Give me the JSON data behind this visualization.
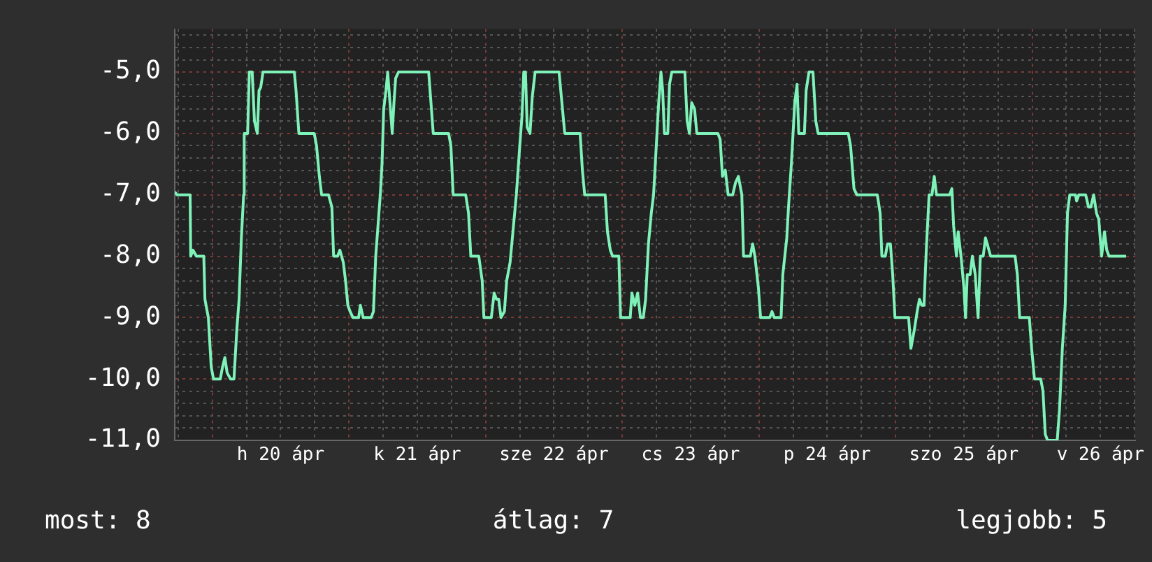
{
  "chart_data": {
    "type": "line",
    "x": [
      "--04-19T17:24",
      "--04-19T17:48",
      "--04-19T20:06",
      "--04-19T20:12",
      "--04-19T20:36",
      "--04-19T21:12",
      "--04-19T22:30",
      "--04-19T22:42",
      "--04-19T23:18",
      "--04-19T23:48",
      "--04-20T00:12",
      "--04-20T01:24",
      "--04-20T01:48",
      "--04-20T02:12",
      "--04-20T02:36",
      "--04-20T03:12",
      "--04-20T03:48",
      "--04-20T04:18",
      "--04-20T04:42",
      "--04-20T05:06",
      "--04-20T05:30",
      "--04-20T05:36",
      "--04-20T06:12",
      "--04-20T06:30",
      "--04-20T07:00",
      "--04-20T07:24",
      "--04-20T07:54",
      "--04-20T08:12",
      "--04-20T08:30",
      "--04-20T08:54",
      "--04-20T14:24",
      "--04-20T14:42",
      "--04-20T15:12",
      "--04-20T17:54",
      "--04-20T18:18",
      "--04-20T18:48",
      "--04-20T19:12",
      "--04-20T20:24",
      "--04-20T21:00",
      "--04-20T21:18",
      "--04-20T22:00",
      "--04-20T22:24",
      "--04-20T23:00",
      "--04-20T23:24",
      "--04-20T23:48",
      "--04-21T00:12",
      "--04-21T00:42",
      "--04-21T01:42",
      "--04-21T02:00",
      "--04-21T02:30",
      "--04-21T03:54",
      "--04-21T04:18",
      "--04-21T04:42",
      "--04-21T05:06",
      "--04-21T05:30",
      "--04-21T05:48",
      "--04-21T06:06",
      "--04-21T06:30",
      "--04-21T06:48",
      "--04-21T07:12",
      "--04-21T07:36",
      "--04-21T07:54",
      "--04-21T08:12",
      "--04-21T08:42",
      "--04-21T14:00",
      "--04-21T14:24",
      "--04-21T14:48",
      "--04-21T17:30",
      "--04-21T17:54",
      "--04-21T18:18",
      "--04-21T20:30",
      "--04-21T21:00",
      "--04-21T21:24",
      "--04-21T22:48",
      "--04-21T23:24",
      "--04-21T23:42",
      "--04-22T01:00",
      "--04-22T01:30",
      "--04-22T01:54",
      "--04-22T02:18",
      "--04-22T02:42",
      "--04-22T03:18",
      "--04-22T03:42",
      "--04-22T04:18",
      "--04-22T04:54",
      "--04-22T05:24",
      "--04-22T06:00",
      "--04-22T06:24",
      "--04-22T06:42",
      "--04-22T07:00",
      "--04-22T07:18",
      "--04-22T07:48",
      "--04-22T08:12",
      "--04-22T08:42",
      "--04-22T12:54",
      "--04-22T13:18",
      "--04-22T13:54",
      "--04-22T16:36",
      "--04-22T17:00",
      "--04-22T17:24",
      "--04-22T21:00",
      "--04-22T21:24",
      "--04-22T21:54",
      "--04-22T22:18",
      "--04-22T23:24",
      "--04-22T23:42",
      "--04-23T01:24",
      "--04-23T01:42",
      "--04-23T02:12",
      "--04-23T02:42",
      "--04-23T03:12",
      "--04-23T03:42",
      "--04-23T04:06",
      "--04-23T04:36",
      "--04-23T05:06",
      "--04-23T05:30",
      "--04-23T05:48",
      "--04-23T06:06",
      "--04-23T06:24",
      "--04-23T06:48",
      "--04-23T07:06",
      "--04-23T07:24",
      "--04-23T08:00",
      "--04-23T08:18",
      "--04-23T08:42",
      "--04-23T11:00",
      "--04-23T11:24",
      "--04-23T11:48",
      "--04-23T12:12",
      "--04-23T12:42",
      "--04-23T13:06",
      "--04-23T16:48",
      "--04-23T17:12",
      "--04-23T17:36",
      "--04-23T18:06",
      "--04-23T18:36",
      "--04-23T19:24",
      "--04-23T19:54",
      "--04-23T20:24",
      "--04-23T21:00",
      "--04-23T21:18",
      "--04-23T22:30",
      "--04-23T22:54",
      "--04-23T23:18",
      "--04-23T23:54",
      "--04-24T00:18",
      "--04-24T01:54",
      "--04-24T02:18",
      "--04-24T02:42",
      "--04-24T03:54",
      "--04-24T04:12",
      "--04-24T04:54",
      "--04-24T05:12",
      "--04-24T05:42",
      "--04-24T06:18",
      "--04-24T06:42",
      "--04-24T07:00",
      "--04-24T08:00",
      "--04-24T08:18",
      "--04-24T08:48",
      "--04-24T09:30",
      "--04-24T10:00",
      "--04-24T10:24",
      "--04-24T15:42",
      "--04-24T16:06",
      "--04-24T16:42",
      "--04-24T17:12",
      "--04-24T20:48",
      "--04-24T21:18",
      "--04-24T21:36",
      "--04-24T22:12",
      "--04-24T22:36",
      "--04-24T23:06",
      "--04-24T23:30",
      "--04-24T23:54",
      "--04-25T02:18",
      "--04-25T02:42",
      "--04-25T03:18",
      "--04-25T03:48",
      "--04-25T04:12",
      "--04-25T04:36",
      "--04-25T05:00",
      "--04-25T05:24",
      "--04-25T05:54",
      "--04-25T06:24",
      "--04-25T06:48",
      "--04-25T07:12",
      "--04-25T09:30",
      "--04-25T09:54",
      "--04-25T10:12",
      "--04-25T10:42",
      "--04-25T11:00",
      "--04-25T11:30",
      "--04-25T12:00",
      "--04-25T12:18",
      "--04-25T12:36",
      "--04-25T13:06",
      "--04-25T13:30",
      "--04-25T14:00",
      "--04-25T14:30",
      "--04-25T14:54",
      "--04-25T15:24",
      "--04-25T15:48",
      "--04-25T16:24",
      "--04-25T16:42",
      "--04-25T21:00",
      "--04-25T21:24",
      "--04-25T21:48",
      "--04-25T23:30",
      "--04-25T23:54",
      "--04-26T00:24",
      "--04-26T01:30",
      "--04-26T01:54",
      "--04-26T02:18",
      "--04-26T02:42",
      "--04-26T04:24",
      "--04-26T04:48",
      "--04-26T05:18",
      "--04-26T05:48",
      "--04-26T06:12",
      "--04-26T06:36",
      "--04-26T07:36",
      "--04-26T07:48",
      "--04-26T08:12",
      "--04-26T09:24",
      "--04-26T09:54",
      "--04-26T10:18",
      "--04-26T10:48",
      "--04-26T11:18",
      "--04-26T11:42",
      "--04-26T12:12",
      "--04-26T12:42",
      "--04-26T13:06",
      "--04-26T13:30",
      "--04-26T16:30"
    ],
    "series": [
      {
        "color": "#7ef2b8",
        "values": [
          -6.95,
          -7,
          -7,
          -8,
          -7.9,
          -8,
          -8,
          -8.7,
          -9,
          -9.8,
          -10,
          -10,
          -9.8,
          -9.65,
          -9.9,
          -10,
          -10,
          -9.2,
          -8.7,
          -7.7,
          -7,
          -6,
          -6,
          -5,
          -5,
          -5.8,
          -6,
          -5.3,
          -5.25,
          -5,
          -5,
          -5.3,
          -6,
          -6,
          -6.2,
          -6.7,
          -7,
          -7,
          -7.2,
          -8,
          -8,
          -7.9,
          -8.1,
          -8.4,
          -8.8,
          -8.9,
          -9,
          -9,
          -8.8,
          -9,
          -9,
          -8.9,
          -8,
          -7.5,
          -7,
          -6.5,
          -5.6,
          -5.3,
          -5,
          -5.5,
          -6,
          -5.5,
          -5.1,
          -5,
          -5,
          -5.5,
          -6,
          -6,
          -6.2,
          -7,
          -7,
          -7.3,
          -8,
          -8,
          -8.4,
          -9,
          -9,
          -8.6,
          -8.7,
          -8.7,
          -9,
          -8.9,
          -8.4,
          -8.1,
          -7.5,
          -7,
          -6.2,
          -5.7,
          -5,
          -5,
          -5.9,
          -6,
          -5.4,
          -5,
          -5,
          -5.4,
          -6,
          -6,
          -6.6,
          -7,
          -7,
          -7.6,
          -7.9,
          -8,
          -8,
          -9,
          -9,
          -8.6,
          -8.8,
          -8.6,
          -9,
          -9,
          -8.7,
          -7.8,
          -7.3,
          -7,
          -6.5,
          -6,
          -5.5,
          -5,
          -5.3,
          -6,
          -6,
          -5.2,
          -5,
          -5,
          -5.8,
          -6,
          -5.5,
          -5.6,
          -6,
          -6,
          -6.1,
          -6.7,
          -6.6,
          -7,
          -7,
          -6.8,
          -6.7,
          -7,
          -8,
          -8,
          -7.8,
          -8,
          -8.5,
          -9,
          -9,
          -8.9,
          -9,
          -9,
          -8.3,
          -7.7,
          -7.2,
          -6.5,
          -5.5,
          -5.2,
          -6,
          -6,
          -5.3,
          -5,
          -5,
          -5.8,
          -6,
          -6,
          -6.2,
          -6.9,
          -7,
          -7,
          -7.3,
          -8,
          -8,
          -7.8,
          -7.8,
          -8.3,
          -9,
          -9,
          -9.5,
          -9.2,
          -8.9,
          -8.7,
          -8.8,
          -8.8,
          -7.9,
          -7,
          -7,
          -6.7,
          -7,
          -7,
          -6.9,
          -7.5,
          -8,
          -7.6,
          -8,
          -8.5,
          -9,
          -8.3,
          -8.3,
          -8,
          -8.3,
          -9,
          -8,
          -8,
          -7.7,
          -7.9,
          -8,
          -8,
          -8.3,
          -9,
          -9,
          -9.5,
          -10,
          -10,
          -10.2,
          -10.9,
          -11,
          -11,
          -10.5,
          -9.5,
          -8.8,
          -7.3,
          -7,
          -7,
          -7.1,
          -7,
          -7,
          -7.2,
          -7.2,
          -7,
          -7.3,
          -7.4,
          -8,
          -7.6,
          -7.9,
          -8,
          -8
        ]
      }
    ],
    "xlim": [
      "--04-19T17:24",
      "--04-26T18:06"
    ],
    "xticks": [
      {
        "value": "--04-19T18:00",
        "label": null
      },
      {
        "value": "--04-20T00:00",
        "label": null
      },
      {
        "value": "--04-20T06:00",
        "label": null
      },
      {
        "value": "--04-20T12:00",
        "label": "h 20 ápr"
      },
      {
        "value": "--04-20T18:00",
        "label": null
      },
      {
        "value": "--04-21T00:00",
        "label": null
      },
      {
        "value": "--04-21T06:00",
        "label": null
      },
      {
        "value": "--04-21T12:00",
        "label": "k 21 ápr"
      },
      {
        "value": "--04-21T18:00",
        "label": null
      },
      {
        "value": "--04-22T00:00",
        "label": null
      },
      {
        "value": "--04-22T06:00",
        "label": null
      },
      {
        "value": "--04-22T12:00",
        "label": "sze 22 ápr"
      },
      {
        "value": "--04-22T18:00",
        "label": null
      },
      {
        "value": "--04-23T00:00",
        "label": null
      },
      {
        "value": "--04-23T06:00",
        "label": null
      },
      {
        "value": "--04-23T12:00",
        "label": "cs 23 ápr"
      },
      {
        "value": "--04-23T18:00",
        "label": null
      },
      {
        "value": "--04-24T00:00",
        "label": null
      },
      {
        "value": "--04-24T06:00",
        "label": null
      },
      {
        "value": "--04-24T12:00",
        "label": "p 24 ápr"
      },
      {
        "value": "--04-24T18:00",
        "label": null
      },
      {
        "value": "--04-25T00:00",
        "label": null
      },
      {
        "value": "--04-25T06:00",
        "label": null
      },
      {
        "value": "--04-25T12:00",
        "label": "szo 25 ápr"
      },
      {
        "value": "--04-25T18:00",
        "label": null
      },
      {
        "value": "--04-26T00:00",
        "label": null
      },
      {
        "value": "--04-26T06:00",
        "label": null
      },
      {
        "value": "--04-26T12:00",
        "label": "v 26 ápr"
      },
      {
        "value": "--04-26T18:00",
        "label": null
      }
    ],
    "ylim": [
      -11,
      -4.3
    ],
    "yticks": [
      {
        "value": -11,
        "label": "-11,0"
      },
      {
        "value": -10.8,
        "label": null
      },
      {
        "value": -10.6,
        "label": null
      },
      {
        "value": -10.4,
        "label": null
      },
      {
        "value": -10.2,
        "label": null
      },
      {
        "value": -10,
        "label": "-10,0"
      },
      {
        "value": -9.8,
        "label": null
      },
      {
        "value": -9.6,
        "label": null
      },
      {
        "value": -9.4,
        "label": null
      },
      {
        "value": -9.2,
        "label": null
      },
      {
        "value": -9,
        "label": "-9,0"
      },
      {
        "value": -8.8,
        "label": null
      },
      {
        "value": -8.6,
        "label": null
      },
      {
        "value": -8.4,
        "label": null
      },
      {
        "value": -8.2,
        "label": null
      },
      {
        "value": -8,
        "label": "-8,0"
      },
      {
        "value": -7.8,
        "label": null
      },
      {
        "value": -7.6,
        "label": null
      },
      {
        "value": -7.4,
        "label": null
      },
      {
        "value": -7.2,
        "label": null
      },
      {
        "value": -7,
        "label": "-7,0"
      },
      {
        "value": -6.8,
        "label": null
      },
      {
        "value": -6.6,
        "label": null
      },
      {
        "value": -6.4,
        "label": null
      },
      {
        "value": -6.2,
        "label": null
      },
      {
        "value": -6,
        "label": "-6,0"
      },
      {
        "value": -5.8,
        "label": null
      },
      {
        "value": -5.6,
        "label": null
      },
      {
        "value": -5.4,
        "label": null
      },
      {
        "value": -5.2,
        "label": null
      },
      {
        "value": -5,
        "label": "-5,0"
      },
      {
        "value": -4.8,
        "label": null
      },
      {
        "value": -4.6,
        "label": null
      },
      {
        "value": -4.4,
        "label": null
      }
    ],
    "grid": true,
    "legend": false,
    "marker": "none",
    "line_style": "solid",
    "annotations": [
      "most: 8",
      "átlag: 7",
      "legjobb: 5"
    ]
  }
}
